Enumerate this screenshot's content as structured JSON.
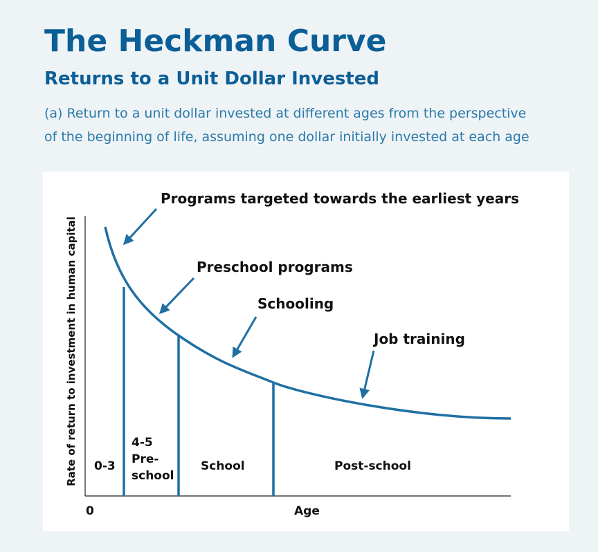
{
  "header": {
    "title": "The Heckman Curve",
    "subtitle": "Returns to a Unit Dollar Invested",
    "caption": [
      "(a) Return to a unit dollar invested at different ages from the perspective",
      "of the beginning of life, assuming one dollar initially invested at each age"
    ]
  },
  "diagram": {
    "y_axis_label": "Rate of return to investment in human capital",
    "x_axis_label": "Age",
    "origin_label": "0",
    "annotations": [
      "Programs targeted towards the earliest years",
      "Preschool programs",
      "Schooling",
      "Job training"
    ],
    "regions": [
      [
        "0-3"
      ],
      [
        "4-5",
        "Pre-",
        "school"
      ],
      [
        "School"
      ],
      [
        "Post-school"
      ]
    ]
  }
}
